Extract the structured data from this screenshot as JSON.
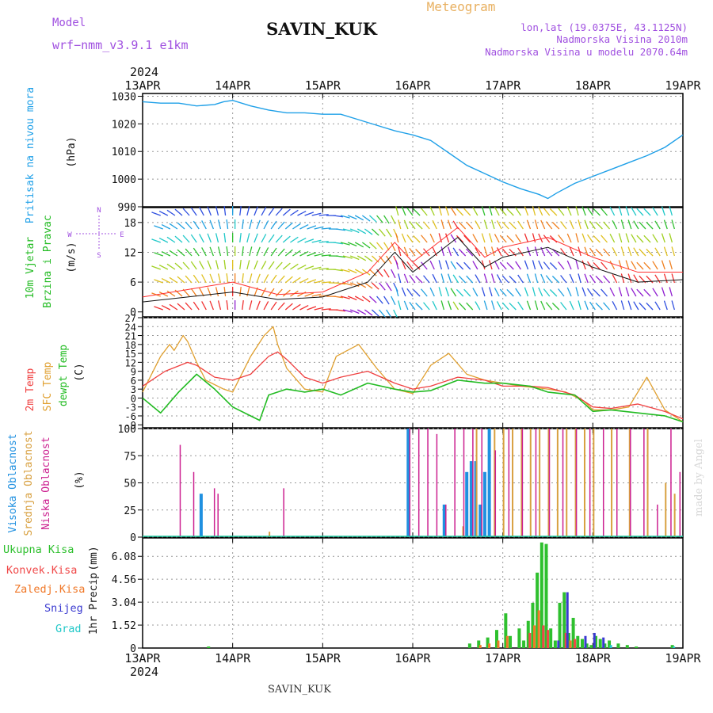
{
  "header": {
    "model_label": "Model",
    "model_name": "wrf−nmm_v3.9.1  e1km",
    "station": "SAVIN_KUK",
    "product": "Meteogram",
    "lonlat": "lon,lat (19.0375E, 43.1125N)",
    "elevation": "Nadmorska Visina 2010m",
    "model_elevation": "Nadmorska Visina u modelu 2070.64m",
    "watermark": "made by Angel",
    "footer_station": "SAVIN_KUK"
  },
  "time_axis": {
    "year": "2024",
    "labels": [
      "13APR",
      "14APR",
      "15APR",
      "16APR",
      "17APR",
      "18APR",
      "19APR"
    ]
  },
  "colors": {
    "pressure": "#1fa0e8",
    "wind_speed": "#111111",
    "wind_gust": "#ff3030",
    "temp_2m": "#f04040",
    "temp_sfc": "#e0a030",
    "dewpoint": "#22bb22",
    "cloud_high": "#1f90e0",
    "cloud_mid": "#d8a040",
    "cloud_low": "#cc2090",
    "precip_total": "#2ec02e",
    "precip_conv": "#f04848",
    "precip_frozen": "#f07828",
    "snow": "#3a3ad0",
    "hail": "#20c8c8"
  },
  "chart_data": [
    {
      "type": "line",
      "panel": "pressure",
      "ylabel": [
        "Pritisak na nivou mora",
        "(hPa)"
      ],
      "ylim": [
        990,
        1031
      ],
      "yticks": [
        990,
        1000,
        1010,
        1020,
        1030
      ],
      "series": [
        {
          "name": "Pritisak na nivou mora",
          "x": [
            0,
            0.2,
            0.4,
            0.6,
            0.8,
            0.9,
            1.0,
            1.2,
            1.4,
            1.6,
            1.8,
            2.0,
            2.2,
            2.4,
            2.6,
            2.8,
            3.0,
            3.2,
            3.4,
            3.6,
            3.8,
            4.0,
            4.2,
            4.4,
            4.5,
            4.6,
            4.8,
            5.0,
            5.2,
            5.4,
            5.6,
            5.8,
            6.0
          ],
          "y": [
            1028,
            1027.5,
            1027.5,
            1026.5,
            1027,
            1028,
            1028.5,
            1026.5,
            1025,
            1024,
            1024,
            1023.5,
            1023.5,
            1021.5,
            1019.5,
            1017.5,
            1016,
            1014,
            1009.5,
            1005,
            1002,
            999,
            996.5,
            994.5,
            993,
            995,
            998.5,
            1001,
            1003.5,
            1006,
            1008.5,
            1011.5,
            1016
          ]
        }
      ]
    },
    {
      "type": "line",
      "panel": "wind",
      "ylabel": [
        "10m Vjetar",
        "Brzina i Pravac",
        "(m/s)"
      ],
      "compass": [
        "N",
        "E",
        "W",
        "S"
      ],
      "ylim": [
        -1,
        21
      ],
      "yticks": [
        0,
        6,
        12,
        18
      ],
      "series": [
        {
          "name": "Brzina",
          "x": [
            0,
            0.5,
            1.0,
            1.5,
            2.0,
            2.5,
            2.8,
            3.0,
            3.5,
            3.8,
            4.0,
            4.5,
            5.0,
            5.5,
            6.0
          ],
          "y": [
            2,
            3,
            4,
            2.5,
            3,
            6,
            12,
            8,
            15,
            9,
            11,
            13,
            9,
            6,
            6.5
          ]
        },
        {
          "name": "Udari",
          "x": [
            0,
            0.5,
            1.0,
            1.5,
            2.0,
            2.5,
            2.8,
            3.0,
            3.5,
            3.8,
            4.0,
            4.5,
            5.0,
            5.5,
            6.0
          ],
          "y": [
            3,
            4.5,
            6,
            3.5,
            4,
            8,
            14,
            10,
            17,
            11,
            13,
            15,
            11,
            8,
            8
          ]
        }
      ]
    },
    {
      "type": "line",
      "panel": "temperature",
      "ylabel": [
        "2m Temp",
        "SFC Temp",
        "dewpt Temp",
        "(C)"
      ],
      "ylim": [
        -10,
        27
      ],
      "yticks": [
        -9,
        -6,
        -3,
        0,
        3,
        6,
        9,
        12,
        15,
        18,
        21,
        24,
        27
      ],
      "series": [
        {
          "name": "2m Temp",
          "x": [
            0,
            0.25,
            0.5,
            0.6,
            0.8,
            1.0,
            1.2,
            1.4,
            1.5,
            1.6,
            1.8,
            2.0,
            2.2,
            2.5,
            2.8,
            3.0,
            3.2,
            3.5,
            3.8,
            4.0,
            4.3,
            4.5,
            4.8,
            5.0,
            5.2,
            5.5,
            5.8,
            6.0
          ],
          "y": [
            4,
            9,
            12,
            11,
            7,
            6,
            8,
            14,
            15.5,
            13,
            7,
            5,
            7,
            9,
            5,
            3,
            4,
            7,
            6,
            4,
            4,
            3.5,
            1,
            -3,
            -3.5,
            -2,
            -4.5,
            -7
          ]
        },
        {
          "name": "SFC Temp",
          "x": [
            0,
            0.2,
            0.3,
            0.35,
            0.45,
            0.5,
            0.6,
            0.7,
            0.9,
            1.0,
            1.2,
            1.35,
            1.45,
            1.5,
            1.6,
            1.8,
            2.0,
            2.15,
            2.4,
            2.6,
            2.8,
            3.0,
            3.2,
            3.4,
            3.6,
            3.8,
            4.0,
            4.2,
            4.5,
            4.7,
            4.9,
            5.0,
            5.2,
            5.4,
            5.6,
            5.8,
            6.0
          ],
          "y": [
            2,
            14,
            18,
            16,
            21,
            19,
            12,
            6,
            3,
            2,
            14,
            21,
            24,
            18,
            10,
            3,
            2,
            14,
            18,
            10,
            3,
            1.5,
            11,
            15,
            8,
            6,
            5,
            4,
            3,
            2,
            -1,
            -4,
            -4,
            -3,
            7,
            -4,
            -8
          ]
        },
        {
          "name": "dewpt Temp",
          "x": [
            0,
            0.2,
            0.4,
            0.6,
            0.8,
            1.0,
            1.2,
            1.3,
            1.4,
            1.6,
            1.8,
            2.0,
            2.2,
            2.5,
            2.8,
            3.0,
            3.2,
            3.5,
            3.8,
            4.0,
            4.3,
            4.5,
            4.8,
            5.0,
            5.2,
            5.5,
            5.8,
            6.0
          ],
          "y": [
            0,
            -5,
            2,
            8,
            3,
            -3,
            -6,
            -7.5,
            1,
            3,
            2,
            3,
            1,
            5,
            3,
            2,
            2.5,
            6,
            5,
            5,
            4,
            2,
            1,
            -4.5,
            -4,
            -5,
            -6,
            -8
          ]
        }
      ]
    },
    {
      "type": "bar",
      "panel": "clouds",
      "ylabel": [
        "Visoka Oblacnost",
        "Srednja Oblacnost",
        "Niska Oblacnost",
        "(%)"
      ],
      "ylim": [
        0,
        100
      ],
      "yticks": [
        0,
        25,
        50,
        75,
        100
      ],
      "series": [
        {
          "name": "Visoka Oblacnost",
          "x": [
            0.65,
            2.95,
            3.35,
            3.6,
            3.65,
            3.7,
            3.75,
            3.8,
            3.85
          ],
          "y": [
            40,
            100,
            30,
            60,
            70,
            70,
            30,
            60,
            100
          ]
        },
        {
          "name": "Srednja Oblacnost",
          "x": [
            1.4,
            3.55,
            3.7,
            3.9,
            4.0,
            4.1,
            4.2,
            4.3,
            4.4,
            4.5,
            4.6,
            4.7,
            4.8,
            4.9,
            5.0,
            5.2,
            5.4,
            5.6,
            5.8,
            5.9
          ],
          "y": [
            5,
            10,
            100,
            100,
            100,
            100,
            100,
            100,
            100,
            100,
            100,
            100,
            100,
            100,
            100,
            100,
            100,
            100,
            50,
            40
          ]
        },
        {
          "name": "Niska Oblacnost",
          "x": [
            0.4,
            0.55,
            0.78,
            0.82,
            1.55,
            2.95,
            3.05,
            3.15,
            3.25,
            3.35,
            3.45,
            3.55,
            3.65,
            3.75,
            3.9,
            4.05,
            4.2,
            4.35,
            4.5,
            4.65,
            4.8,
            4.95,
            5.1,
            5.25,
            5.4,
            5.55,
            5.7,
            5.85,
            5.95
          ],
          "y": [
            85,
            60,
            45,
            40,
            45,
            100,
            100,
            100,
            95,
            30,
            100,
            100,
            100,
            100,
            80,
            100,
            100,
            100,
            100,
            100,
            100,
            100,
            100,
            100,
            100,
            100,
            30,
            100,
            60
          ]
        }
      ]
    },
    {
      "type": "bar",
      "panel": "precipitation",
      "ylabel": [
        "1hr Precip",
        "(mm)"
      ],
      "legend": [
        "Ukupna Kisa",
        "Konvek.Kisa",
        "Zaledj.Kisa",
        "Snijeg",
        "Grad"
      ],
      "ylim": [
        0,
        7.3
      ],
      "yticks": [
        0,
        1.52,
        3.04,
        4.56,
        6.08
      ],
      "series": [
        {
          "name": "Ukupna Kisa",
          "x": [
            0.75,
            3.65,
            3.75,
            3.85,
            3.95,
            4.05,
            4.1,
            4.2,
            4.25,
            4.3,
            4.35,
            4.4,
            4.45,
            4.5,
            4.55,
            4.6,
            4.65,
            4.7,
            4.75,
            4.8,
            4.85,
            4.9,
            4.95,
            5.0,
            5.05,
            5.1,
            5.15,
            5.2,
            5.3,
            5.4,
            5.5,
            5.9
          ],
          "y": [
            0.1,
            0.3,
            0.5,
            0.7,
            1.2,
            2.3,
            0.8,
            1.3,
            0.5,
            1.8,
            3.0,
            5.0,
            7.0,
            6.9,
            1.3,
            0.5,
            3.0,
            3.7,
            1.0,
            2.0,
            0.8,
            0.6,
            0.3,
            0.2,
            0.8,
            0.6,
            0.3,
            0.5,
            0.3,
            0.2,
            0.1,
            0.2
          ]
        },
        {
          "name": "Konvek.Kisa",
          "x": [
            4.3,
            4.45,
            4.5,
            4.7,
            4.8
          ],
          "y": [
            1.0,
            1.5,
            1.2,
            1.0,
            0.6
          ]
        },
        {
          "name": "Zaledj.Kisa",
          "x": [
            3.75,
            3.85,
            3.95,
            4.05,
            4.35,
            4.4,
            4.75
          ],
          "y": [
            0.2,
            0.3,
            0.5,
            0.8,
            1.5,
            2.5,
            0.5
          ]
        },
        {
          "name": "Snijeg",
          "x": [
            4.6,
            4.7,
            4.9,
            5.0,
            5.1
          ],
          "y": [
            0.5,
            3.7,
            0.8,
            1.0,
            0.7
          ]
        },
        {
          "name": "Grad",
          "x": [
            5.2,
            5.9
          ],
          "y": [
            0.2,
            0.1
          ]
        }
      ]
    }
  ]
}
